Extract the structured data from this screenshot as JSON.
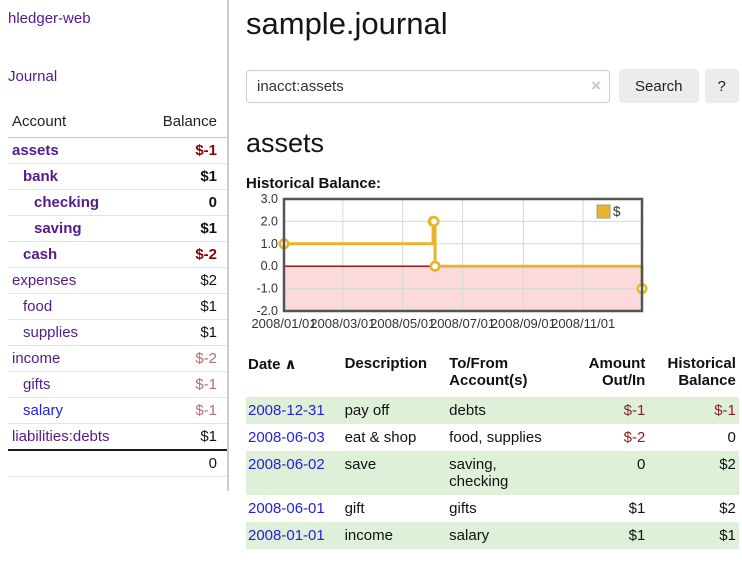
{
  "app": {
    "title": "hledger-web",
    "nav_journal": "Journal"
  },
  "colors": {
    "link_purple": "#551a8b",
    "link_blue": "#2222dd",
    "negative_strong": "#8b0000",
    "negative_muted": "#b76e6e",
    "row_stripe_green": "#dff0d8",
    "chart_line_gold": "#e8b42c",
    "chart_negative_fill": "#fadada",
    "chart_zero_line": "#990000"
  },
  "sidebar": {
    "columns": {
      "account": "Account",
      "balance": "Balance"
    },
    "accounts": [
      {
        "name": "assets",
        "balance": "$-1",
        "indent": 1,
        "bold": true,
        "balance_style": "neg-strong"
      },
      {
        "name": "bank",
        "balance": "$1",
        "indent": 2,
        "bold": true,
        "balance_style": ""
      },
      {
        "name": "checking",
        "balance": "0",
        "indent": 3,
        "bold": true,
        "balance_style": ""
      },
      {
        "name": "saving",
        "balance": "$1",
        "indent": 3,
        "bold": true,
        "balance_style": ""
      },
      {
        "name": "cash",
        "balance": "$-2",
        "indent": 2,
        "bold": true,
        "balance_style": "neg-strong"
      },
      {
        "name": "expenses",
        "balance": "$2",
        "indent": 1,
        "bold": false,
        "balance_style": ""
      },
      {
        "name": "food",
        "balance": "$1",
        "indent": 2,
        "bold": false,
        "balance_style": ""
      },
      {
        "name": "supplies",
        "balance": "$1",
        "indent": 2,
        "bold": false,
        "balance_style": ""
      },
      {
        "name": "income",
        "balance": "$-2",
        "indent": 1,
        "bold": false,
        "balance_style": "neg-muted"
      },
      {
        "name": "gifts",
        "balance": "$-1",
        "indent": 2,
        "bold": false,
        "balance_style": "neg-muted"
      },
      {
        "name": "salary",
        "balance": "$-1",
        "indent": 2,
        "bold": false,
        "balance_style": "neg-muted",
        "link_blue": true
      },
      {
        "name": "liabilities:debts",
        "balance": "$1",
        "indent": 1,
        "bold": false,
        "balance_style": ""
      }
    ],
    "total": "0"
  },
  "header": {
    "title": "sample.journal"
  },
  "search": {
    "value": "inacct:assets",
    "clear_icon": "×",
    "button_label": "Search",
    "help_label": "?"
  },
  "account_page": {
    "heading": "assets",
    "chart_label": "Historical Balance:"
  },
  "chart_data": {
    "type": "line",
    "title": "Historical Balance",
    "step": true,
    "series": [
      {
        "name": "$",
        "color": "#e8b42c",
        "points": [
          [
            "2008-01-01",
            1
          ],
          [
            "2008-06-01",
            2
          ],
          [
            "2008-06-02",
            2
          ],
          [
            "2008-06-03",
            0
          ],
          [
            "2008-12-31",
            -1
          ]
        ]
      }
    ],
    "xlim": [
      "2008-01-01",
      "2008-12-31"
    ],
    "ylim": [
      -2,
      3
    ],
    "x_ticks": [
      "2008/01/01",
      "2008/03/01",
      "2008/05/01",
      "2008/07/01",
      "2008/09/01",
      "2008/11/01"
    ],
    "y_ticks": [
      3.0,
      2.0,
      1.0,
      0.0,
      -1.0,
      -2.0
    ],
    "grid": true,
    "negative_region_color": "#fadada",
    "zero_line_color": "#990000",
    "legend": {
      "label": "$",
      "position": "top-right"
    }
  },
  "transactions": {
    "columns": {
      "date": "Date",
      "description": "Description",
      "accounts": "To/From Account(s)",
      "amount": "Amount Out/In",
      "balance": "Historical Balance"
    },
    "sort_icon": "∧",
    "rows": [
      {
        "date": "2008-12-31",
        "description": "pay off",
        "accounts": "debts",
        "amount": "$-1",
        "balance": "$-1",
        "amount_neg": true,
        "balance_neg": true
      },
      {
        "date": "2008-06-03",
        "description": "eat & shop",
        "accounts": "food, supplies",
        "amount": "$-2",
        "balance": "0",
        "amount_neg": true,
        "balance_neg": false
      },
      {
        "date": "2008-06-02",
        "description": "save",
        "accounts": "saving, checking",
        "amount": "0",
        "balance": "$2",
        "amount_neg": false,
        "balance_neg": false
      },
      {
        "date": "2008-06-01",
        "description": "gift",
        "accounts": "gifts",
        "amount": "$1",
        "balance": "$2",
        "amount_neg": false,
        "balance_neg": false
      },
      {
        "date": "2008-01-01",
        "description": "income",
        "accounts": "salary",
        "amount": "$1",
        "balance": "$1",
        "amount_neg": false,
        "balance_neg": false
      }
    ]
  }
}
